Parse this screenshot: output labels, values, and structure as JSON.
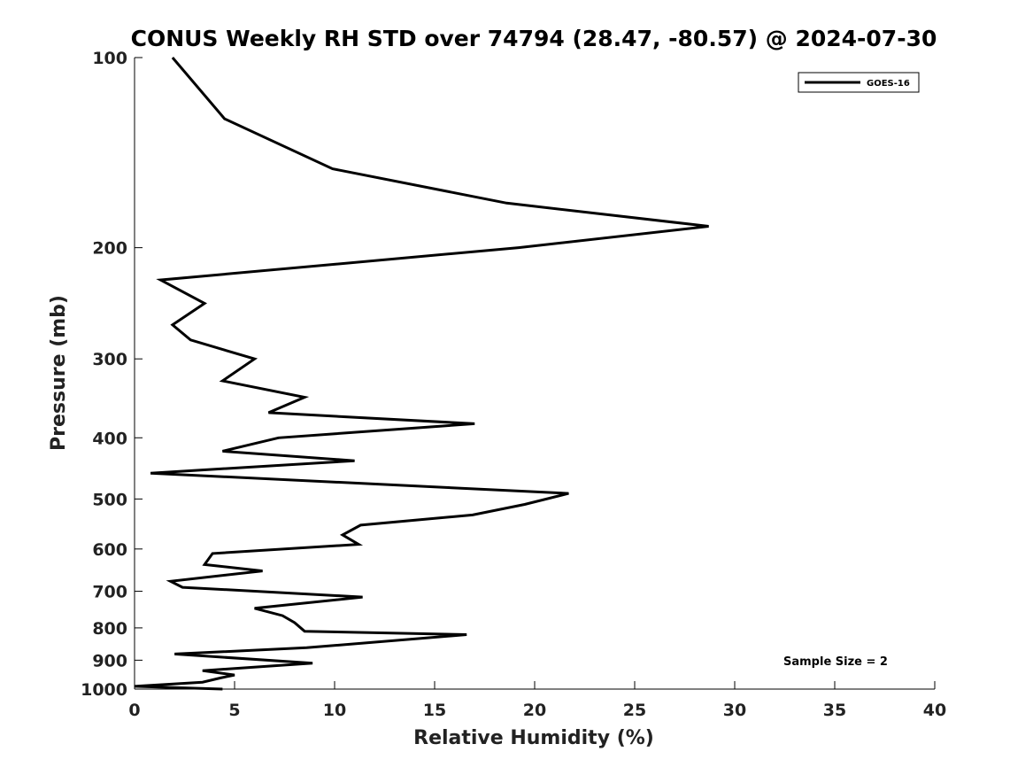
{
  "chart_data": {
    "type": "line",
    "title": "CONUS Weekly RH STD over 74794 (28.47, -80.57) @ 2024-07-30",
    "xlabel": "Relative Humidity (%)",
    "ylabel": "Pressure (mb)",
    "xlim": [
      0,
      40
    ],
    "ylim": [
      100,
      1000
    ],
    "y_scale": "log",
    "y_inverted": true,
    "x_ticks": [
      0,
      5,
      10,
      15,
      20,
      25,
      30,
      35,
      40
    ],
    "y_ticks": [
      100,
      200,
      300,
      400,
      500,
      600,
      700,
      800,
      900,
      1000
    ],
    "x_tick_labels": [
      "0",
      "5",
      "10",
      "15",
      "20",
      "25",
      "30",
      "35",
      "40"
    ],
    "y_tick_labels": [
      "100",
      "200",
      "300",
      "400",
      "500",
      "600",
      "700",
      "800",
      "900",
      "1000"
    ],
    "grid": false,
    "legend_position": "top-right",
    "line_color": "#000000",
    "series": [
      {
        "name": "GOES-16",
        "x": [
          1.9,
          4.5,
          9.9,
          18.6,
          28.7,
          19.2,
          1.3,
          3.5,
          1.9,
          2.8,
          6.0,
          4.4,
          8.5,
          6.7,
          17.0,
          7.2,
          4.4,
          11.0,
          0.8,
          21.7,
          19.5,
          16.9,
          11.3,
          10.4,
          11.2,
          3.9,
          3.5,
          6.4,
          1.8,
          2.4,
          11.4,
          6.0,
          7.4,
          8.0,
          8.5,
          16.6,
          8.6,
          2.0,
          8.9,
          3.4,
          5.0,
          4.3,
          3.4,
          0.0,
          4.4
        ],
        "y": [
          100,
          125,
          150,
          170,
          185,
          200,
          225,
          245,
          265,
          280,
          300,
          325,
          345,
          365,
          380,
          400,
          420,
          435,
          455,
          490,
          510,
          530,
          550,
          570,
          590,
          610,
          635,
          650,
          675,
          690,
          715,
          745,
          765,
          785,
          810,
          820,
          860,
          880,
          910,
          935,
          950,
          960,
          975,
          990,
          1000
        ]
      }
    ],
    "annotation": "Sample Size = 2"
  }
}
